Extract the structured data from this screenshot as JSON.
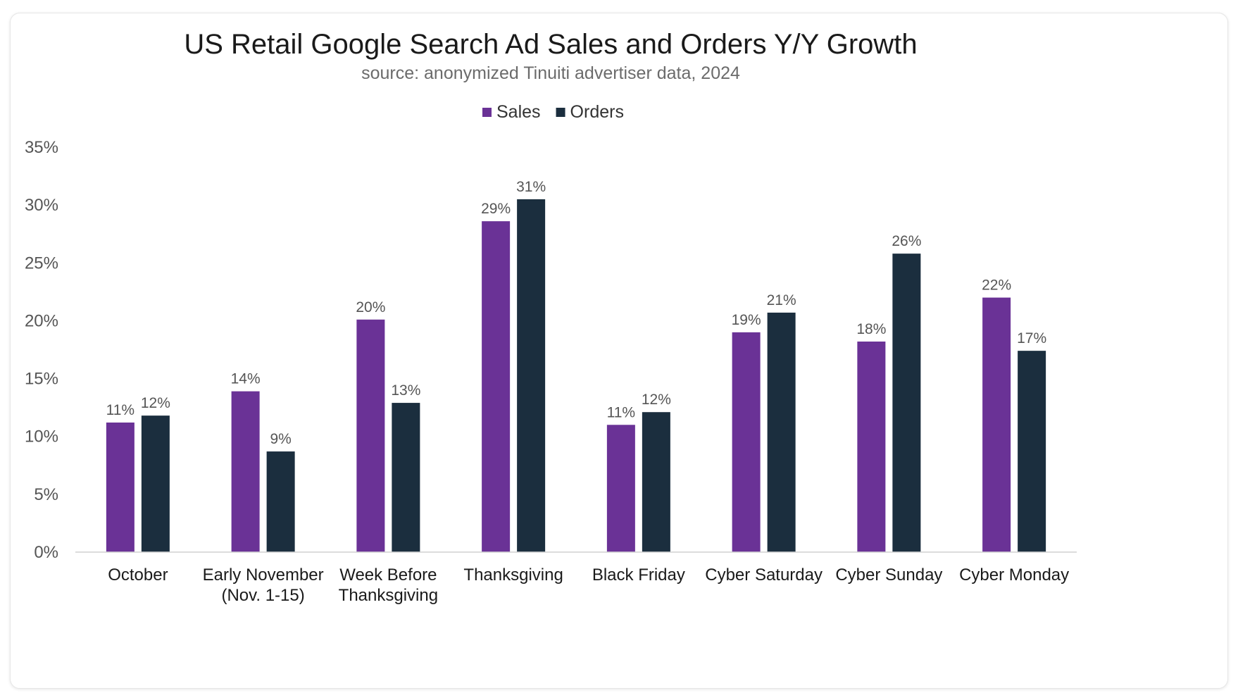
{
  "chart_data": {
    "type": "bar",
    "title": "US Retail Google Search Ad Sales and Orders Y/Y Growth",
    "subtitle": "source: anonymized Tinuiti advertiser data, 2024",
    "categories": [
      [
        "October"
      ],
      [
        "Early November",
        "(Nov. 1-15)"
      ],
      [
        "Week Before",
        "Thanksgiving"
      ],
      [
        "Thanksgiving"
      ],
      [
        "Black Friday"
      ],
      [
        "Cyber Saturday"
      ],
      [
        "Cyber Sunday"
      ],
      [
        "Cyber Monday"
      ]
    ],
    "series": [
      {
        "name": "Sales",
        "color": "#6a3296",
        "values": [
          11.2,
          13.9,
          20.1,
          28.6,
          11.0,
          19.0,
          18.2,
          22.0
        ],
        "labels": [
          "11%",
          "14%",
          "20%",
          "29%",
          "11%",
          "19%",
          "18%",
          "22%"
        ]
      },
      {
        "name": "Orders",
        "color": "#1b2e3e",
        "values": [
          11.8,
          8.7,
          12.9,
          30.5,
          12.1,
          20.7,
          25.8,
          17.4
        ],
        "labels": [
          "12%",
          "9%",
          "13%",
          "31%",
          "12%",
          "21%",
          "26%",
          "17%"
        ]
      }
    ],
    "yticks": [
      0,
      5,
      10,
      15,
      20,
      25,
      30,
      35
    ],
    "ytick_labels": [
      "0%",
      "5%",
      "10%",
      "15%",
      "20%",
      "25%",
      "30%",
      "35%"
    ],
    "ylim": [
      0,
      35
    ],
    "xlabel": "",
    "ylabel": "",
    "grid": false,
    "legend_position": "top"
  }
}
